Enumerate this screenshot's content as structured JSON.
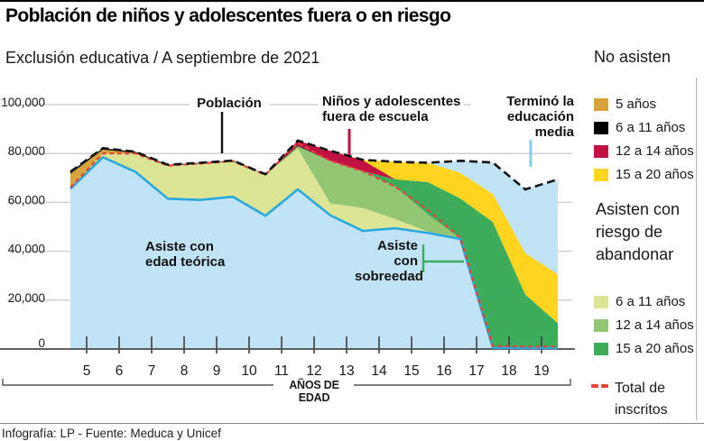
{
  "header": {
    "title": "Población de niños y adolescentes fuera o en riesgo",
    "subtitle": "Exclusión educativa / A septiembre de 2021"
  },
  "footer": {
    "credit": "Infografía: LP - Fuente: Meduca y Unicef"
  },
  "annotations": {
    "poblacion": "Población",
    "fuera_de_escuela": "Niños y adolescentes\nfuera de escuela",
    "termino_media": "Terminó la\neducación media",
    "asiste_teorica": "Asiste con\nedad teórica",
    "asiste_sobreedad": "Asiste con\nsobreedad"
  },
  "legend": {
    "no_asisten": {
      "heading": "No asisten",
      "items": [
        {
          "label": "5 años",
          "color": "#D9A33C"
        },
        {
          "label": "6 a 11 años",
          "color": "#000000"
        },
        {
          "label": "12 a 14 años",
          "color": "#C11243"
        },
        {
          "label": "15 a 20 años",
          "color": "#FFD41E"
        }
      ]
    },
    "riesgo": {
      "heading": "Asisten con riesgo de abandonar",
      "items": [
        {
          "label": "6 a 11 años",
          "color": "#DCE593"
        },
        {
          "label": "12 a 14 años",
          "color": "#93C672"
        },
        {
          "label": "15 a 20 años",
          "color": "#3BAD5B"
        }
      ]
    },
    "total": {
      "label": "Total de\ninscritos",
      "color": "#E8433B"
    }
  },
  "colors": {
    "area_teorica": "#C0E4F6",
    "line_teorica": "#29A8E0",
    "riesgo_6_11": "#DCE593",
    "riesgo_12_14": "#93C672",
    "riesgo_15_20": "#3BAD5B",
    "no_asisten_5": "#D9A33C",
    "no_asisten_6_11": "#111111",
    "no_asisten_12_14": "#C11243",
    "no_asisten_15_20": "#FFD41E",
    "termino_media": "#C0E4F6",
    "total_inscritos_line": "#E8433B",
    "poblacion_line": "#111111",
    "grid": "#CBCBCB",
    "axis": "#3F3F3F"
  },
  "chart_data": {
    "type": "area",
    "title": "Exclusión educativa / A septiembre de 2021",
    "xlabel": "AÑOS DE EDAD",
    "ylabel": "",
    "units": "persons (estimated from chart)",
    "ylim": [
      0,
      100000
    ],
    "grid": true,
    "legend_position": "right",
    "x": [
      4.5,
      5.5,
      6.5,
      7.5,
      8.5,
      9.5,
      10.5,
      11.5,
      12.5,
      13.5,
      14.5,
      15.5,
      16.5,
      17.5,
      18.5,
      19.5
    ],
    "x_ticks": [
      "5",
      "6",
      "7",
      "8",
      "9",
      "10",
      "11",
      "12",
      "13",
      "14",
      "15",
      "16",
      "17",
      "18",
      "19"
    ],
    "y_ticks": [
      "0",
      "20,000",
      "40,000",
      "60,000",
      "80,000",
      "100,000"
    ],
    "series": [
      {
        "id": "teorica",
        "name": "Asiste con edad teórica",
        "color": "#C0E4F6",
        "values": [
          65500,
          78500,
          72500,
          61500,
          61000,
          62300,
          54500,
          65300,
          54700,
          48300,
          49400,
          47500,
          45000,
          500,
          400,
          400
        ]
      },
      {
        "id": "riesgo_6_11",
        "name": "Asisten con riesgo de abandonar 6 a 11 años",
        "color": "#DCE593",
        "values": [
          600,
          1500,
          7500,
          13500,
          14900,
          14600,
          16800,
          16700,
          4900,
          9400,
          3800,
          500,
          100,
          0,
          0,
          0
        ]
      },
      {
        "id": "riesgo_12_14",
        "name": "Asisten con riesgo de abandonar 12 a 14 años",
        "color": "#93C672",
        "values": [
          0,
          0,
          0,
          0,
          0,
          0,
          0,
          1000,
          17400,
          15100,
          13200,
          7100,
          200,
          0,
          0,
          0
        ]
      },
      {
        "id": "riesgo_15_20",
        "name": "Asisten con riesgo de abandonar 15 a 20 años",
        "color": "#3BAD5B",
        "values": [
          0,
          0,
          0,
          0,
          0,
          0,
          0,
          0,
          0,
          0,
          3000,
          13200,
          16300,
          51500,
          21900,
          10200
        ]
      },
      {
        "id": "no_asisten_5",
        "name": "No asisten 5 años",
        "color": "#D9A33C",
        "values": [
          5600,
          1600,
          200,
          0,
          0,
          0,
          0,
          0,
          0,
          0,
          0,
          0,
          0,
          0,
          0,
          0
        ]
      },
      {
        "id": "no_asisten_6_11",
        "name": "No asisten 6 a 11 años",
        "color": "#111111",
        "values": [
          800,
          600,
          500,
          400,
          300,
          200,
          200,
          300,
          0,
          0,
          0,
          0,
          0,
          0,
          0,
          0
        ]
      },
      {
        "id": "no_asisten_12_14",
        "name": "No asisten 12 a 14 años",
        "color": "#C11243",
        "values": [
          0,
          0,
          0,
          0,
          0,
          0,
          0,
          2000,
          4100,
          4400,
          0,
          0,
          0,
          0,
          0,
          0
        ]
      },
      {
        "id": "no_asisten_15_20",
        "name": "No asisten 15 a 20 años",
        "color": "#FFD41E",
        "values": [
          0,
          0,
          0,
          0,
          0,
          0,
          0,
          0,
          0,
          200,
          7200,
          7900,
          10500,
          11400,
          16900,
          20000
        ]
      },
      {
        "id": "termino_media",
        "name": "Terminó la educación media",
        "color": "#C0E4F6",
        "values": [
          0,
          0,
          0,
          0,
          0,
          0,
          0,
          0,
          0,
          0,
          0,
          0,
          4900,
          12900,
          26100,
          38800
        ]
      }
    ],
    "lines": [
      {
        "id": "teorica_line",
        "name": "Asiste con edad teórica (límite)",
        "color": "#29A8E0",
        "style": "solid",
        "values": [
          65500,
          78500,
          72500,
          61500,
          61000,
          62300,
          54500,
          65300,
          54700,
          48300,
          49400,
          47500,
          45000,
          500,
          400,
          400
        ]
      },
      {
        "id": "total_inscritos",
        "name": "Total de inscritos",
        "color": "#E8433B",
        "style": "dashed",
        "values": [
          66100,
          80000,
          80000,
          75000,
          75900,
          76900,
          71300,
          84300,
          77000,
          72800,
          66400,
          57000,
          45500,
          1200,
          1000,
          1000
        ]
      },
      {
        "id": "poblacion",
        "name": "Población",
        "color": "#111111",
        "style": "dashed",
        "values": [
          72500,
          82200,
          80700,
          75400,
          76200,
          77100,
          71500,
          85300,
          81100,
          77400,
          76600,
          76200,
          77000,
          76300,
          65300,
          69400
        ]
      }
    ]
  }
}
